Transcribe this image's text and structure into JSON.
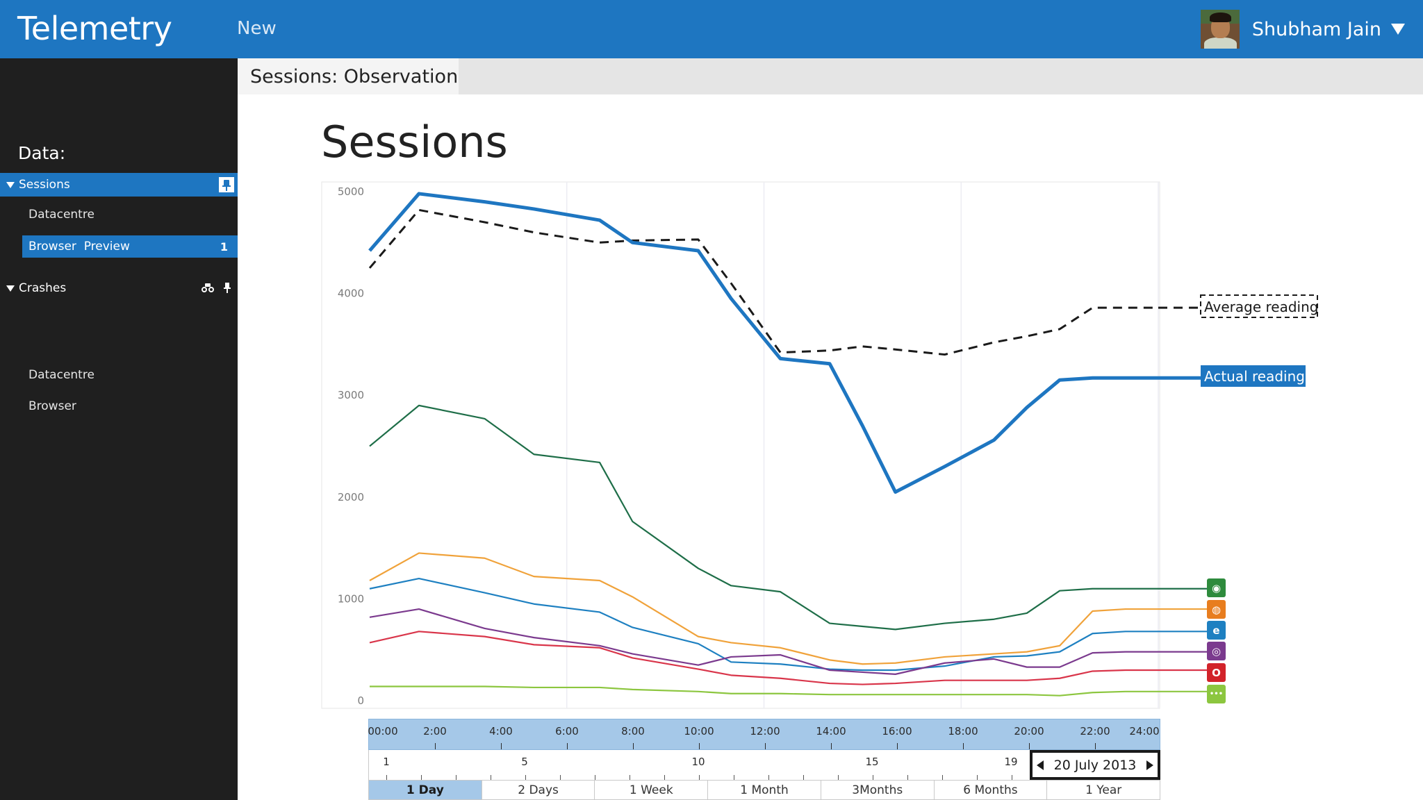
{
  "app": {
    "title": "Telemetry",
    "new_label": "New"
  },
  "user": {
    "name": "Shubham Jain"
  },
  "sidebar": {
    "heading": "Data:",
    "sessions": {
      "label": "Sessions",
      "children": [
        "Datacentre",
        "Browser  Preview"
      ],
      "preview_count": "1"
    },
    "crashes": {
      "label": "Crashes",
      "children": [
        "Datacentre",
        "Browser"
      ]
    }
  },
  "tab": {
    "label": "Sessions: Observation"
  },
  "page": {
    "title": "Sessions"
  },
  "chart_data": {
    "type": "line",
    "ylim": [
      0,
      5000
    ],
    "y_ticks": [
      "5000",
      "4000",
      "3000",
      "2000",
      "1000",
      "0"
    ],
    "x": [
      0,
      1.5,
      3.5,
      5,
      7,
      8,
      10,
      11,
      12.5,
      14,
      15,
      16,
      17.5,
      19,
      20,
      21,
      22,
      23,
      24
    ],
    "series": [
      {
        "name": "Average reading",
        "style": "dashed",
        "color": "#1a1a1a",
        "values": [
          4250,
          4820,
          4700,
          4600,
          4500,
          4520,
          4530,
          4100,
          3420,
          3440,
          3480,
          3450,
          3400,
          3520,
          3580,
          3650,
          3860,
          3860,
          3860
        ]
      },
      {
        "name": "Actual reading",
        "style": "bold",
        "color": "#1e76c1",
        "values": [
          4420,
          4980,
          4900,
          4830,
          4720,
          4500,
          4420,
          3950,
          3360,
          3310,
          2700,
          2050,
          2300,
          2560,
          2880,
          3150,
          3170,
          3170,
          3170
        ]
      },
      {
        "name": "",
        "color": "#1e6e48",
        "values": [
          2500,
          2900,
          2770,
          2420,
          2340,
          1760,
          1300,
          1130,
          1070,
          760,
          730,
          700,
          760,
          800,
          860,
          1080,
          1100,
          1100,
          1100
        ]
      },
      {
        "name": "",
        "color": "#f0a23a",
        "values": [
          1180,
          1450,
          1400,
          1220,
          1180,
          1020,
          630,
          570,
          520,
          400,
          360,
          370,
          430,
          460,
          480,
          540,
          880,
          900,
          900
        ]
      },
      {
        "name": "",
        "color": "#1e80c1",
        "values": [
          1100,
          1200,
          1060,
          950,
          870,
          720,
          560,
          380,
          360,
          310,
          300,
          300,
          340,
          430,
          440,
          480,
          660,
          680,
          680
        ]
      },
      {
        "name": "",
        "color": "#7b3a8e",
        "values": [
          820,
          900,
          710,
          620,
          540,
          460,
          350,
          430,
          450,
          300,
          280,
          260,
          370,
          410,
          330,
          330,
          470,
          480,
          480
        ]
      },
      {
        "name": "",
        "color": "#d9354a",
        "values": [
          570,
          680,
          630,
          550,
          520,
          420,
          310,
          250,
          220,
          170,
          160,
          170,
          200,
          200,
          200,
          220,
          290,
          300,
          300
        ]
      },
      {
        "name": "",
        "color": "#8cc63f",
        "values": [
          140,
          140,
          140,
          130,
          130,
          110,
          90,
          70,
          70,
          60,
          60,
          60,
          60,
          60,
          60,
          50,
          80,
          90,
          90
        ]
      }
    ],
    "legend": {
      "average": "Average reading",
      "actual": "Actual reading"
    }
  },
  "timeline": {
    "hours": [
      "00:00",
      "2:00",
      "4:00",
      "6:00",
      "8:00",
      "10:00",
      "12:00",
      "14:00",
      "16:00",
      "18:00",
      "20:00",
      "22:00",
      "24:00"
    ],
    "days": [
      "1",
      "5",
      "10",
      "15",
      "19"
    ],
    "date": "20 July 2013",
    "ranges": [
      "1 Day",
      "2 Days",
      "1 Week",
      "1 Month",
      "3Months",
      "6 Months",
      "1 Year"
    ],
    "active_range": "1 Day"
  },
  "browser_icons": [
    {
      "name": "chrome-icon",
      "color": "#2e8b3d",
      "glyph": "◉"
    },
    {
      "name": "firefox-icon",
      "color": "#e87d1e",
      "glyph": "◍"
    },
    {
      "name": "ie-icon",
      "color": "#1e80c1",
      "glyph": "e"
    },
    {
      "name": "tor-icon",
      "color": "#7b3a8e",
      "glyph": "◎"
    },
    {
      "name": "opera-icon",
      "color": "#d2232a",
      "glyph": "O"
    },
    {
      "name": "more-browsers-icon",
      "color": "#8cc63f",
      "glyph": "•••"
    }
  ]
}
